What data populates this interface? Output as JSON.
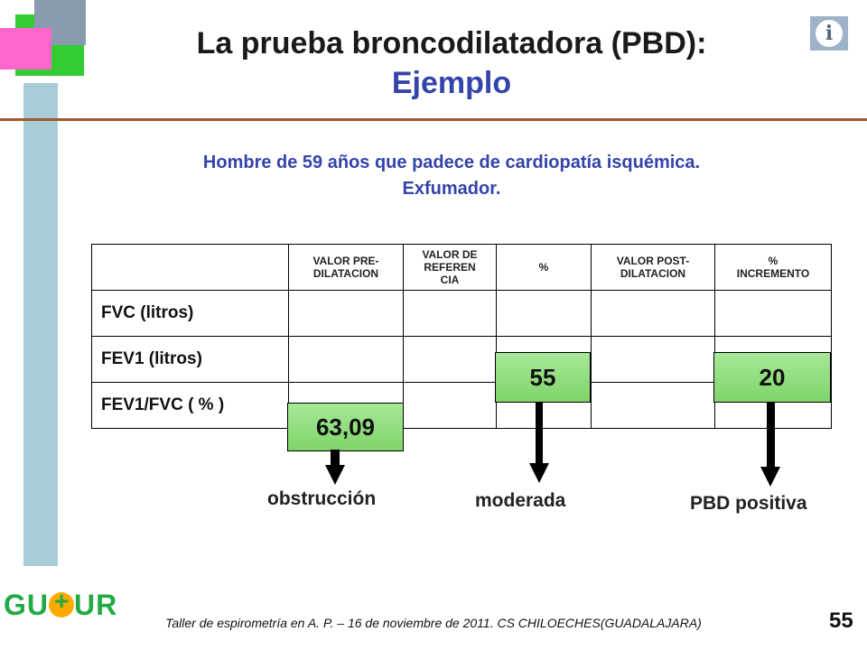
{
  "title": "La prueba broncodilatadora (PBD):",
  "subtitle": "Ejemplo",
  "info_icon": "info-icon",
  "description_line1": "Hombre de 59 años que padece de cardiopatía isquémica.",
  "description_line2": "Exfumador.",
  "table": {
    "headers": [
      "",
      "VALOR PRE-\nDILATACION",
      "VALOR DE\nREFEREN\nCIA",
      "%",
      "VALOR POST-\nDILATACION",
      "%\nINCREMENTO"
    ],
    "rows": [
      {
        "label": "FVC   (litros)"
      },
      {
        "label": "FEV1   (litros)"
      },
      {
        "label": "FEV1/FVC ( % )"
      }
    ]
  },
  "highlights": {
    "fev1_pct": "55",
    "fev1_increment": "20",
    "ratio_pre": "63,09"
  },
  "conclusions": {
    "obstruction": "obstrucción",
    "moderate": "moderada",
    "pbd_positive": "PBD positiva"
  },
  "footer": "Taller de espirometría en A. P. – 16 de noviembre de 2011. CS CHILOECHES(GUADALAJARA)",
  "page_number": "55",
  "logo_text_left": "GU",
  "logo_text_right": "UR",
  "colors": {
    "title": "#1a1a1a",
    "accent_blue": "#3344aa",
    "highlight_green": "#8fdc7a",
    "rule_brown": "#9c5a2e"
  }
}
